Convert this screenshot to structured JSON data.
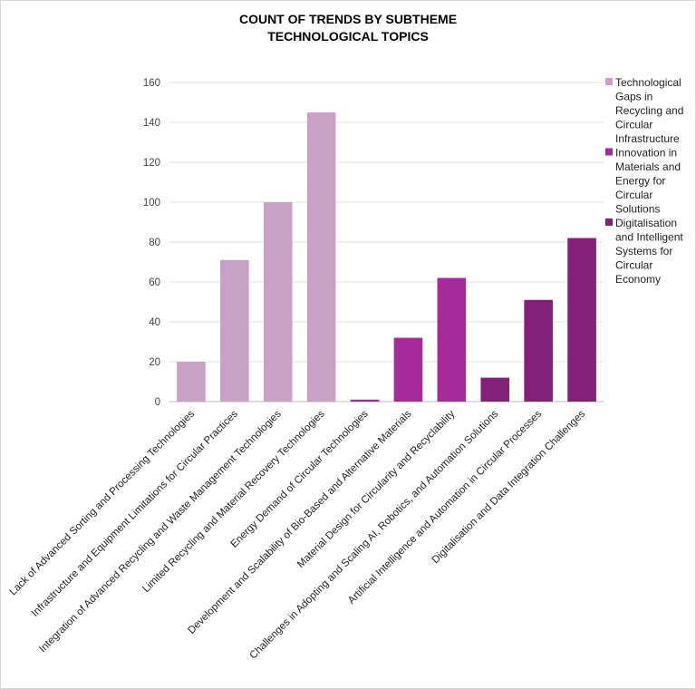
{
  "chart_data": {
    "type": "bar",
    "title": "COUNT OF TRENDS BY SUBTHEME",
    "subtitle": "TECHNOLOGICAL TOPICS",
    "xlabel": "",
    "ylabel": "",
    "ylim": [
      0,
      160
    ],
    "yticks": [
      0,
      20,
      40,
      60,
      80,
      100,
      120,
      140,
      160
    ],
    "grid": true,
    "legend_position": "right",
    "categories": [
      "Lack of Advanced Sorting and Processing Technologies",
      "Infrastructure and Equipment Limitations for Circular Practices",
      "Integration of Advanced Recycling and Waste Management Technologies",
      "Limited Recycling and Material Recovery Technologies",
      "Energy Demand of Circular Technologies",
      "Development and Scalability of Bio-Based and Alternative Materials",
      "Material Design for Circularity and Recyclability",
      "Challenges in Adopting and Scaling AI, Robotics, and Automation Solutions",
      "Artificial Intelligence and Automation in Circular Processes",
      "Digitalisation and Data Integration Challenges"
    ],
    "values": [
      20,
      71,
      100,
      145,
      1,
      32,
      62,
      12,
      51,
      82
    ],
    "bar_series": [
      0,
      0,
      0,
      0,
      1,
      1,
      1,
      2,
      2,
      2
    ],
    "series": [
      {
        "name": "Technological Gaps in Recycling and Circular Infrastructure",
        "color": "#c9a0c6",
        "legend_lines": [
          "Technological",
          "Gaps in",
          "Recycling and",
          "Circular",
          "Infrastructure"
        ]
      },
      {
        "name": "Innovation in Materials and Energy for Circular Solutions",
        "color": "#a52a9a",
        "legend_lines": [
          "Innovation in",
          "Materials and",
          "Energy for",
          "Circular",
          "Solutions"
        ]
      },
      {
        "name": "Digitalisation and Intelligent Systems for Circular Economy",
        "color": "#84207a",
        "legend_lines": [
          "Digitalisation",
          "and Intelligent",
          "Systems for",
          "Circular",
          "Economy"
        ]
      }
    ]
  }
}
